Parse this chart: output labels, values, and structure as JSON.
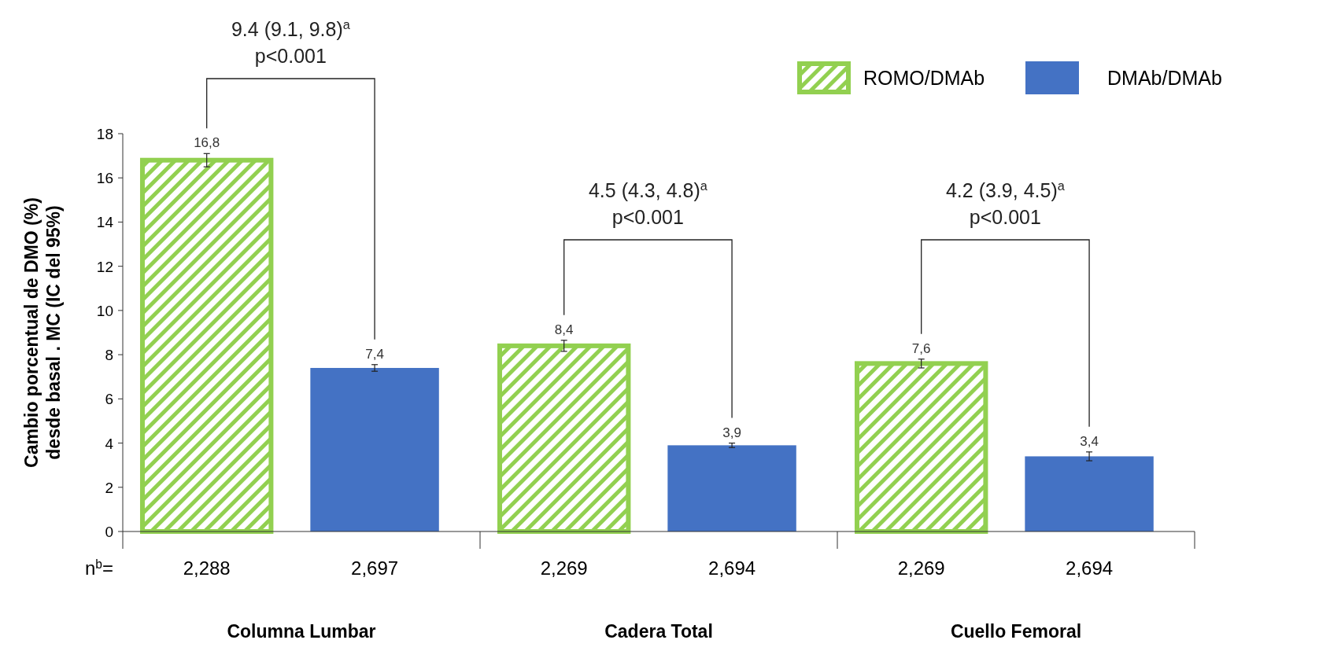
{
  "chart_data": {
    "type": "bar",
    "ylabel": "Cambio porcentual de DMO (%)\ndesde basal . MC (IC del 95%)",
    "categories": [
      "Columna Lumbar",
      "Cadera Total",
      "Cuello Femoral"
    ],
    "series": [
      {
        "name": "ROMO/DMAb",
        "color": "#92d050",
        "values": [
          16.8,
          8.4,
          7.6
        ],
        "errors": [
          0.3,
          0.25,
          0.2
        ],
        "value_labels": [
          "16,8",
          "8,4",
          "7,6"
        ]
      },
      {
        "name": "DMAb/DMAb",
        "color": "#4472c4",
        "values": [
          7.4,
          3.9,
          3.4
        ],
        "errors": [
          0.15,
          0.1,
          0.2
        ],
        "value_labels": [
          "7,4",
          "3,9",
          "3,4"
        ]
      }
    ],
    "ylim": [
      0,
      18
    ],
    "yticks": [
      0,
      2,
      4,
      6,
      8,
      10,
      12,
      14,
      16,
      18
    ],
    "legend": "top right",
    "annotations": [
      "9.4 (9.1, 9.8)$^{a}$\np<0.001",
      "4.5 (4.3, 4.8)$^{a}$\np<0.001",
      "4.2 (3.9, 4.5)$^{a}$\np<0.001",
      "n$^{b}$=",
      "2,288",
      "2,697",
      "2,269",
      "2,694",
      "2,269",
      "2,694"
    ]
  }
}
